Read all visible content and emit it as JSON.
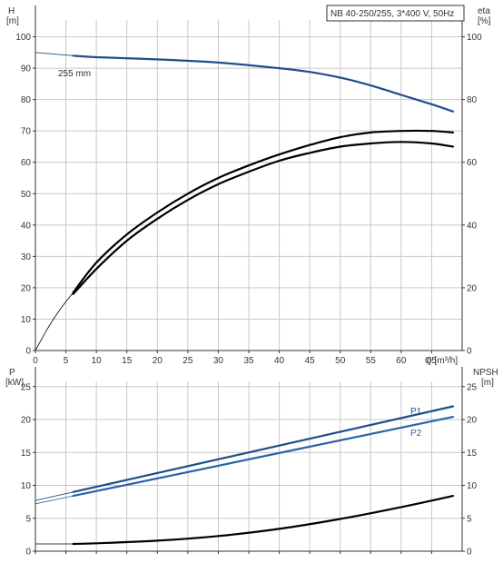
{
  "colors": {
    "blue": "#1f4e8c",
    "blue_light": "#2a63a8",
    "black": "#000000",
    "grid": "#c8c8c8",
    "axis": "#333333",
    "text": "#333333"
  },
  "chart_data": [
    {
      "type": "line",
      "title": "NB 40-250/255, 3*400 V, 50Hz",
      "xlabel": "Q [m³/h]",
      "ylabel": "H",
      "ylabel_unit": "[m]",
      "ylabel_right": "eta",
      "ylabel_right_unit": "[%]",
      "xlim": [
        0,
        70
      ],
      "ylim": [
        0,
        110
      ],
      "y2lim": [
        0,
        110
      ],
      "x_ticks": [
        0,
        5,
        10,
        15,
        20,
        25,
        30,
        35,
        40,
        45,
        50,
        55,
        60,
        65
      ],
      "y_ticks": [
        0,
        10,
        20,
        30,
        40,
        50,
        60,
        70,
        80,
        90,
        100
      ],
      "y2_ticks": [
        0,
        20,
        40,
        60,
        80,
        100
      ],
      "grid": true,
      "annotation": "255 mm",
      "series": [
        {
          "role": "H-curve",
          "axis": "left",
          "color": "blue",
          "thin_x": [
            0,
            6.2
          ],
          "thin_y": [
            95,
            94
          ],
          "x": [
            6.2,
            10,
            20,
            30,
            40,
            45,
            50,
            55,
            60,
            65,
            68.5
          ],
          "y": [
            94,
            93.5,
            92.8,
            91.8,
            90,
            88.8,
            87,
            84.5,
            81.5,
            78.5,
            76.2
          ]
        },
        {
          "role": "eta-upper",
          "axis": "right",
          "color": "black",
          "thin_x": [
            0,
            2,
            4,
            6.2
          ],
          "thin_y": [
            0,
            7,
            13,
            18.5
          ],
          "x": [
            6.2,
            10,
            15,
            20,
            25,
            30,
            35,
            40,
            45,
            50,
            55,
            60,
            65,
            68.5
          ],
          "y": [
            18.5,
            28,
            37,
            44,
            50,
            55,
            59,
            62.5,
            65.5,
            68,
            69.5,
            70,
            70,
            69.5
          ]
        },
        {
          "role": "eta-lower",
          "axis": "right",
          "color": "black",
          "x": [
            6.2,
            10,
            15,
            20,
            25,
            30,
            35,
            40,
            45,
            50,
            55,
            60,
            65,
            68.5
          ],
          "y": [
            18,
            26,
            35,
            42,
            48,
            53,
            57,
            60.5,
            63,
            65,
            66,
            66.5,
            66,
            65
          ]
        }
      ]
    },
    {
      "type": "line",
      "xlabel": "",
      "ylabel": "P",
      "ylabel_unit": "[kW]",
      "ylabel_right": "NPSH",
      "ylabel_right_unit": "[m]",
      "xlim": [
        0,
        70
      ],
      "ylim": [
        0,
        28
      ],
      "y2lim": [
        0,
        28
      ],
      "y_ticks": [
        0,
        5,
        10,
        15,
        20,
        25
      ],
      "y2_ticks": [
        0,
        5,
        10,
        15,
        20,
        25
      ],
      "grid": true,
      "series": [
        {
          "name": "P1",
          "axis": "left",
          "color": "blue",
          "thin_x": [
            0,
            6.2
          ],
          "thin_y": [
            7.7,
            9.0
          ],
          "x": [
            6.2,
            68.5
          ],
          "y": [
            9.0,
            22.0
          ]
        },
        {
          "name": "P2",
          "axis": "left",
          "color": "blue_light",
          "thin_x": [
            0,
            6.2
          ],
          "thin_y": [
            7.2,
            8.4
          ],
          "x": [
            6.2,
            68.5
          ],
          "y": [
            8.4,
            20.4
          ]
        },
        {
          "role": "NPSH",
          "axis": "right",
          "color": "black",
          "thin_x": [
            0,
            6.2
          ],
          "thin_y": [
            1.1,
            1.1
          ],
          "x": [
            6.2,
            10,
            20,
            30,
            40,
            50,
            60,
            68.5
          ],
          "y": [
            1.1,
            1.2,
            1.6,
            2.3,
            3.4,
            4.9,
            6.7,
            8.4
          ]
        }
      ]
    }
  ]
}
